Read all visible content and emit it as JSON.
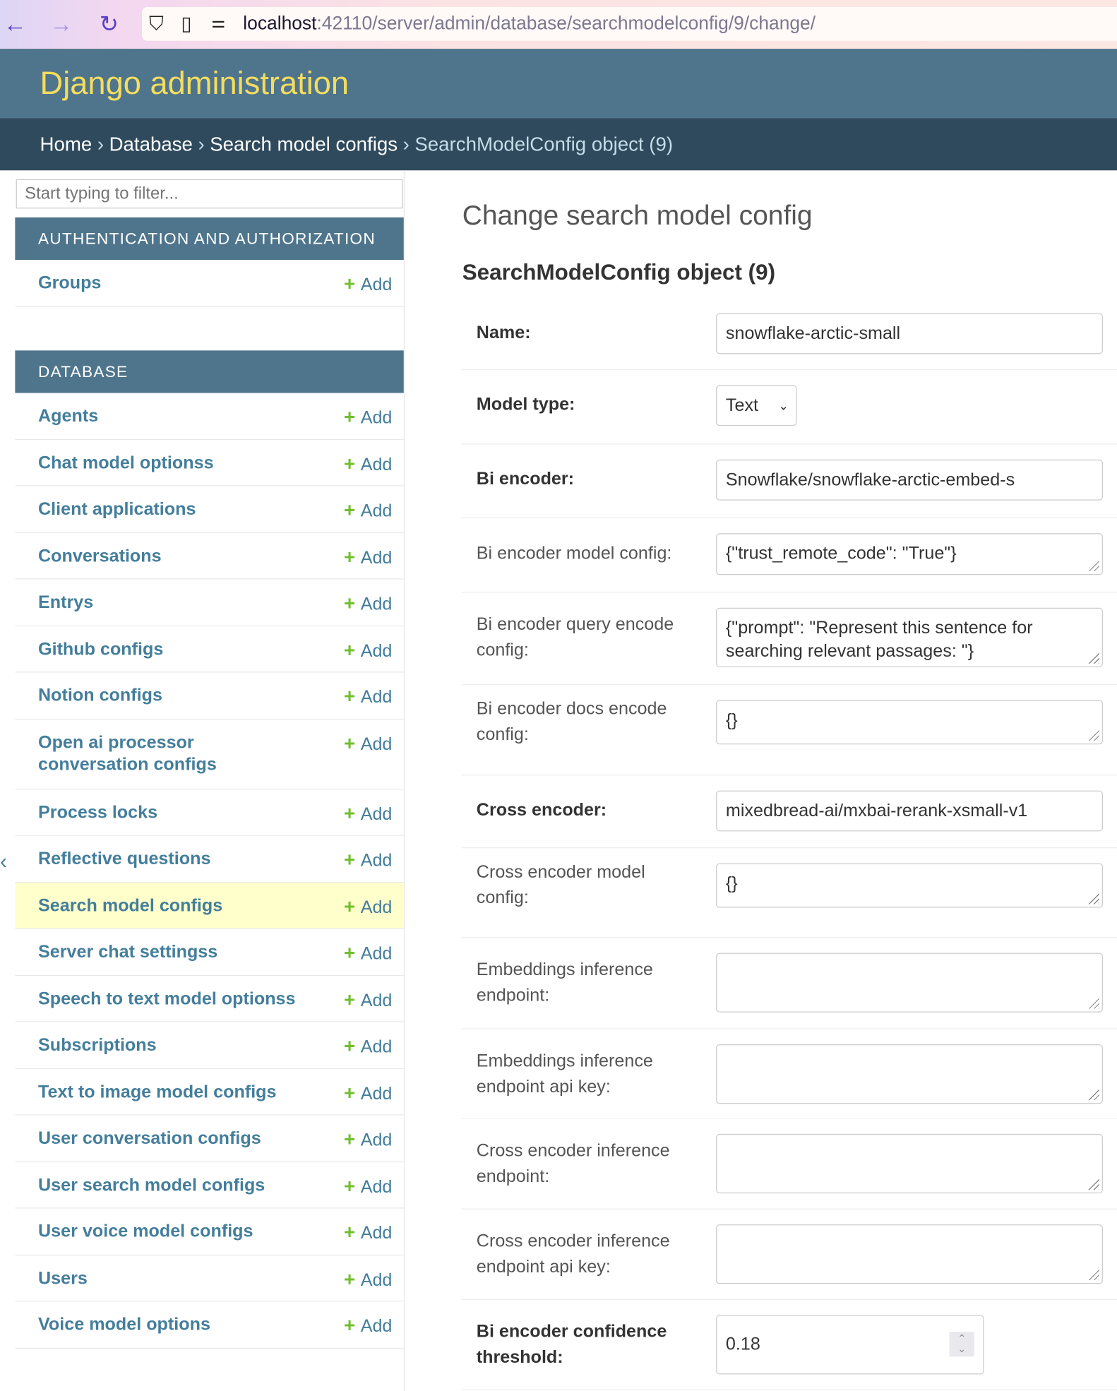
{
  "browser": {
    "url_host": "localhost",
    "url_rest": ":42110/server/admin/database/searchmodelconfig/9/change/"
  },
  "header": {
    "site_title": "Django administration"
  },
  "breadcrumbs": [
    "Home",
    "Database",
    "Search model configs",
    "SearchModelConfig object (9)"
  ],
  "sidebar": {
    "filter_placeholder": "Start typing to filter...",
    "add_label": "Add",
    "sections": [
      {
        "caption": "AUTHENTICATION AND AUTHORIZATION",
        "items": [
          "Groups"
        ]
      },
      {
        "caption": "DATABASE",
        "items": [
          "Agents",
          "Chat model optionss",
          "Client applications",
          "Conversations",
          "Entrys",
          "Github configs",
          "Notion configs",
          "Open ai processor conversation configs",
          "Process locks",
          "Reflective questions",
          "Search model configs",
          "Server chat settingss",
          "Speech to text model optionss",
          "Subscriptions",
          "Text to image model configs",
          "User conversation configs",
          "User search model configs",
          "User voice model configs",
          "Users",
          "Voice model options"
        ]
      }
    ],
    "selected": "Search model configs",
    "toggle": "‹"
  },
  "main": {
    "title": "Change search model config",
    "object_title": "SearchModelConfig object (9)",
    "fields": [
      {
        "label": "Name:",
        "value": "snowflake-arctic-small",
        "required": true,
        "type": "text"
      },
      {
        "label": "Model type:",
        "value": "Text",
        "required": true,
        "type": "select"
      },
      {
        "label": "Bi encoder:",
        "value": "Snowflake/snowflake-arctic-embed-s",
        "required": true,
        "type": "text"
      },
      {
        "label": "Bi encoder model config:",
        "value": "{\"trust_remote_code\": \"True\"}",
        "required": false,
        "type": "textarea"
      },
      {
        "label": "Bi encoder query encode config:",
        "value": "{\"prompt\": \"Represent this sentence for searching relevant passages: \"}",
        "required": false,
        "type": "textarea"
      },
      {
        "label": "Bi encoder docs encode config:",
        "value": "{}",
        "required": false,
        "type": "textarea"
      },
      {
        "label": "Cross encoder:",
        "value": "mixedbread-ai/mxbai-rerank-xsmall-v1",
        "required": true,
        "type": "text"
      },
      {
        "label": "Cross encoder model config:",
        "value": "{}",
        "required": false,
        "type": "textarea"
      },
      {
        "label": "Embeddings inference endpoint:",
        "value": "",
        "required": false,
        "type": "textarea"
      },
      {
        "label": "Embeddings inference endpoint api key:",
        "value": "",
        "required": false,
        "type": "textarea"
      },
      {
        "label": "Cross encoder inference endpoint:",
        "value": "",
        "required": false,
        "type": "textarea"
      },
      {
        "label": "Cross encoder inference endpoint api key:",
        "value": "",
        "required": false,
        "type": "textarea"
      },
      {
        "label": "Bi encoder confidence threshold:",
        "value": "0.18",
        "required": true,
        "type": "number"
      }
    ]
  },
  "colors": {
    "header_bg": "#4f758d",
    "breadcrumb_bg": "#2f4a5c",
    "title_yellow": "#f5dd5d",
    "link": "#447e9b",
    "add_green": "#70bf2b",
    "selected_row": "#ffffcc"
  }
}
